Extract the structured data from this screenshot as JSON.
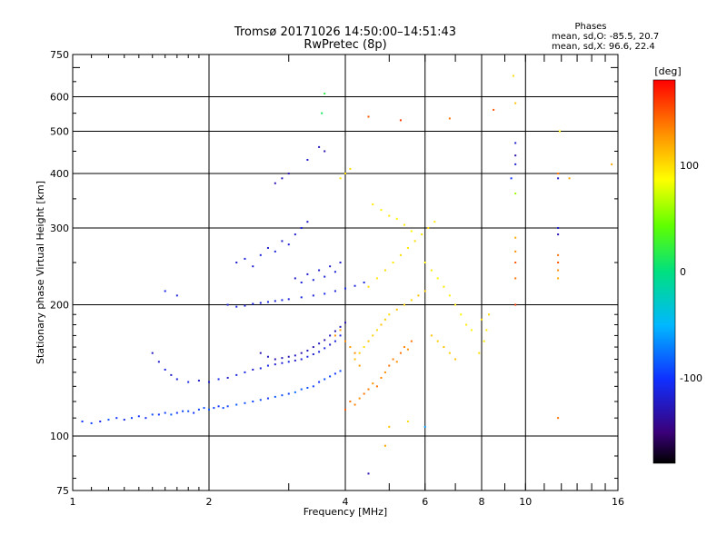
{
  "chart_data": {
    "type": "scatter",
    "title": "Tromsø 20171026 14:50:00–14:51:43",
    "subtitle": "RwPretec (8p)",
    "xlabel": "Frequency [MHz]",
    "ylabel": "Stationary phase Virtual Height [km]",
    "x_scale": "log",
    "y_scale": "log",
    "xlim": [
      1,
      16
    ],
    "ylim": [
      75,
      750
    ],
    "x_ticks": [
      1,
      2,
      4,
      6,
      8,
      10,
      16
    ],
    "x_ticklabels": [
      "1",
      "2",
      "4",
      "6",
      "8",
      "10",
      "16"
    ],
    "x_gridlines": [
      2,
      4,
      6,
      8,
      10
    ],
    "y_ticks": [
      75,
      100,
      200,
      300,
      400,
      500,
      600,
      750
    ],
    "y_ticklabels": [
      "75",
      "100",
      "200",
      "300",
      "400",
      "500",
      "600",
      "750"
    ],
    "y_gridlines": [
      100,
      200,
      300,
      400,
      500,
      600
    ],
    "grid": true,
    "phase_box": {
      "title": "Phases",
      "line1": "mean, sd,O:  -85.5, 20.7",
      "line2": "mean, sd,X:  96.6, 22.4"
    },
    "colorbar": {
      "label": "[deg]",
      "ticks": [
        "100",
        "0",
        "-100"
      ],
      "tick_values": [
        100,
        0,
        -100
      ],
      "range": [
        -180,
        180
      ]
    },
    "series": [
      {
        "points": [
          [
            1.05,
            108,
            -100
          ],
          [
            1.1,
            107,
            -95
          ],
          [
            1.15,
            108,
            -105
          ],
          [
            1.2,
            109,
            -90
          ],
          [
            1.25,
            110,
            -100
          ],
          [
            1.3,
            109,
            -110
          ],
          [
            1.35,
            110,
            -95
          ],
          [
            1.4,
            111,
            -100
          ],
          [
            1.45,
            110,
            -105
          ],
          [
            1.5,
            112,
            -90
          ],
          [
            1.55,
            112,
            -100
          ],
          [
            1.6,
            113,
            -95
          ],
          [
            1.65,
            112,
            -85
          ],
          [
            1.7,
            113,
            -100
          ],
          [
            1.75,
            114,
            -95
          ],
          [
            1.8,
            114,
            -90
          ],
          [
            1.85,
            113,
            -100
          ],
          [
            1.9,
            115,
            -95
          ],
          [
            1.95,
            116,
            -90
          ],
          [
            2.0,
            115,
            -85
          ],
          [
            2.05,
            116,
            -95
          ],
          [
            2.1,
            117,
            -100
          ],
          [
            2.15,
            116,
            -90
          ],
          [
            2.2,
            117,
            -95
          ],
          [
            2.3,
            118,
            -85
          ],
          [
            2.4,
            119,
            -90
          ],
          [
            2.5,
            120,
            -95
          ],
          [
            2.6,
            121,
            -90
          ],
          [
            2.7,
            122,
            -100
          ],
          [
            2.8,
            123,
            -85
          ],
          [
            2.9,
            124,
            -90
          ],
          [
            3.0,
            125,
            -95
          ],
          [
            3.1,
            126,
            -80
          ],
          [
            3.2,
            128,
            -85
          ],
          [
            3.3,
            129,
            -90
          ],
          [
            3.4,
            130,
            -95
          ],
          [
            3.5,
            133,
            -100
          ],
          [
            3.6,
            135,
            -90
          ],
          [
            3.7,
            137,
            -95
          ],
          [
            3.8,
            139,
            -100
          ],
          [
            3.9,
            141,
            -90
          ],
          [
            1.5,
            155,
            -125
          ],
          [
            1.55,
            148,
            -120
          ],
          [
            1.6,
            142,
            -115
          ],
          [
            1.65,
            138,
            -120
          ],
          [
            1.7,
            135,
            -115
          ],
          [
            1.8,
            133,
            -110
          ],
          [
            1.9,
            134,
            -120
          ],
          [
            2.0,
            133,
            -115
          ],
          [
            2.1,
            135,
            -110
          ],
          [
            2.2,
            136,
            -120
          ],
          [
            2.3,
            138,
            -115
          ],
          [
            2.4,
            140,
            -110
          ],
          [
            2.5,
            142,
            -120
          ],
          [
            2.6,
            143,
            -115
          ],
          [
            2.7,
            145,
            -110
          ],
          [
            2.8,
            146,
            -120
          ],
          [
            2.9,
            147,
            -115
          ],
          [
            3.0,
            148,
            -110
          ],
          [
            3.1,
            149,
            -120
          ],
          [
            3.2,
            150,
            -115
          ],
          [
            3.3,
            152,
            -110
          ],
          [
            3.4,
            154,
            -120
          ],
          [
            3.5,
            156,
            -115
          ],
          [
            3.6,
            159,
            -110
          ],
          [
            3.7,
            162,
            -120
          ],
          [
            3.8,
            165,
            -115
          ],
          [
            3.9,
            170,
            -110
          ],
          [
            2.6,
            155,
            -130
          ],
          [
            2.7,
            152,
            -125
          ],
          [
            2.8,
            150,
            -130
          ],
          [
            2.9,
            151,
            -125
          ],
          [
            3.0,
            152,
            -130
          ],
          [
            3.1,
            153,
            -125
          ],
          [
            3.2,
            155,
            -130
          ],
          [
            3.3,
            157,
            -125
          ],
          [
            3.4,
            160,
            -130
          ],
          [
            3.5,
            163,
            -125
          ],
          [
            3.6,
            166,
            -130
          ],
          [
            3.7,
            170,
            -125
          ],
          [
            3.8,
            174,
            -130
          ],
          [
            3.9,
            178,
            -125
          ],
          [
            4.0,
            182,
            -130
          ],
          [
            2.2,
            200,
            -115
          ],
          [
            2.3,
            198,
            -110
          ],
          [
            2.4,
            199,
            -115
          ],
          [
            2.5,
            201,
            -110
          ],
          [
            2.6,
            202,
            -115
          ],
          [
            2.7,
            203,
            -110
          ],
          [
            2.8,
            204,
            -115
          ],
          [
            2.9,
            205,
            -110
          ],
          [
            3.0,
            206,
            -115
          ],
          [
            3.2,
            208,
            -110
          ],
          [
            3.4,
            210,
            -115
          ],
          [
            3.6,
            212,
            -110
          ],
          [
            3.8,
            215,
            -115
          ],
          [
            4.0,
            218,
            -110
          ],
          [
            4.2,
            221,
            -115
          ],
          [
            4.4,
            225,
            -110
          ],
          [
            2.3,
            250,
            -120
          ],
          [
            2.4,
            255,
            -115
          ],
          [
            2.5,
            245,
            -120
          ],
          [
            2.6,
            260,
            -115
          ],
          [
            2.7,
            270,
            -120
          ],
          [
            2.8,
            265,
            -115
          ],
          [
            2.9,
            280,
            -120
          ],
          [
            3.0,
            275,
            -115
          ],
          [
            3.1,
            290,
            -120
          ],
          [
            3.2,
            300,
            -115
          ],
          [
            3.3,
            310,
            -120
          ],
          [
            2.8,
            380,
            -130
          ],
          [
            2.9,
            390,
            -125
          ],
          [
            3.0,
            400,
            -130
          ],
          [
            3.3,
            430,
            -120
          ],
          [
            3.5,
            460,
            -125
          ],
          [
            3.6,
            450,
            -130
          ],
          [
            3.1,
            230,
            -120
          ],
          [
            3.2,
            225,
            -115
          ],
          [
            3.3,
            235,
            -120
          ],
          [
            3.4,
            228,
            -115
          ],
          [
            3.5,
            240,
            -120
          ],
          [
            3.6,
            232,
            -115
          ],
          [
            3.7,
            245,
            -120
          ],
          [
            3.8,
            238,
            -115
          ],
          [
            3.9,
            250,
            -120
          ],
          [
            1.6,
            215,
            -110
          ],
          [
            1.7,
            210,
            -115
          ],
          [
            4.0,
            115,
            150
          ],
          [
            4.1,
            120,
            140
          ],
          [
            4.2,
            118,
            135
          ],
          [
            4.3,
            122,
            130
          ],
          [
            4.4,
            125,
            140
          ],
          [
            4.5,
            128,
            135
          ],
          [
            4.6,
            132,
            130
          ],
          [
            4.7,
            130,
            140
          ],
          [
            4.8,
            136,
            135
          ],
          [
            4.9,
            140,
            130
          ],
          [
            5.0,
            145,
            140
          ],
          [
            5.1,
            150,
            135
          ],
          [
            5.2,
            148,
            130
          ],
          [
            5.3,
            155,
            140
          ],
          [
            5.4,
            160,
            135
          ],
          [
            5.5,
            158,
            130
          ],
          [
            5.6,
            165,
            140
          ],
          [
            4.2,
            150,
            110
          ],
          [
            4.3,
            155,
            105
          ],
          [
            4.4,
            160,
            100
          ],
          [
            4.5,
            165,
            110
          ],
          [
            4.6,
            170,
            105
          ],
          [
            4.7,
            175,
            100
          ],
          [
            4.8,
            180,
            110
          ],
          [
            4.9,
            185,
            105
          ],
          [
            5.0,
            190,
            100
          ],
          [
            5.2,
            195,
            110
          ],
          [
            5.4,
            200,
            105
          ],
          [
            5.6,
            205,
            100
          ],
          [
            5.8,
            210,
            110
          ],
          [
            6.0,
            215,
            105
          ],
          [
            4.5,
            220,
            100
          ],
          [
            4.7,
            230,
            95
          ],
          [
            4.9,
            240,
            100
          ],
          [
            5.1,
            250,
            95
          ],
          [
            5.3,
            260,
            100
          ],
          [
            5.5,
            270,
            95
          ],
          [
            5.7,
            280,
            100
          ],
          [
            5.9,
            290,
            95
          ],
          [
            6.1,
            300,
            100
          ],
          [
            6.3,
            310,
            95
          ],
          [
            4.6,
            340,
            95
          ],
          [
            4.8,
            330,
            90
          ],
          [
            5.0,
            320,
            95
          ],
          [
            5.2,
            315,
            90
          ],
          [
            5.4,
            305,
            95
          ],
          [
            5.6,
            295,
            90
          ],
          [
            6.0,
            250,
            90
          ],
          [
            6.2,
            240,
            95
          ],
          [
            6.4,
            230,
            90
          ],
          [
            6.6,
            220,
            95
          ],
          [
            6.8,
            210,
            90
          ],
          [
            7.0,
            200,
            95
          ],
          [
            7.2,
            190,
            90
          ],
          [
            7.4,
            180,
            95
          ],
          [
            7.6,
            175,
            90
          ],
          [
            6.2,
            170,
            110
          ],
          [
            6.4,
            165,
            105
          ],
          [
            6.6,
            160,
            110
          ],
          [
            6.8,
            155,
            105
          ],
          [
            7.0,
            150,
            110
          ],
          [
            4.0,
            400,
            100
          ],
          [
            3.9,
            390,
            95
          ],
          [
            4.1,
            410,
            100
          ],
          [
            3.6,
            610,
            20
          ],
          [
            3.55,
            550,
            10
          ],
          [
            4.5,
            540,
            150
          ],
          [
            5.3,
            530,
            160
          ],
          [
            6.8,
            535,
            140
          ],
          [
            8.5,
            560,
            150
          ],
          [
            9.5,
            580,
            110
          ],
          [
            9.5,
            470,
            -120
          ],
          [
            9.5,
            440,
            -130
          ],
          [
            9.5,
            420,
            -120
          ],
          [
            9.3,
            390,
            -100
          ],
          [
            9.5,
            360,
            60
          ],
          [
            9.5,
            285,
            120
          ],
          [
            9.5,
            265,
            130
          ],
          [
            9.5,
            250,
            150
          ],
          [
            9.5,
            230,
            140
          ],
          [
            9.5,
            200,
            160
          ],
          [
            9.4,
            670,
            100
          ],
          [
            11.9,
            500,
            90
          ],
          [
            11.8,
            400,
            140
          ],
          [
            12.5,
            390,
            120
          ],
          [
            11.8,
            390,
            -120
          ],
          [
            11.8,
            300,
            -120
          ],
          [
            11.8,
            290,
            -130
          ],
          [
            11.8,
            260,
            140
          ],
          [
            11.8,
            250,
            150
          ],
          [
            11.8,
            240,
            130
          ],
          [
            11.8,
            230,
            120
          ],
          [
            11.8,
            110,
            140
          ],
          [
            15.5,
            420,
            120
          ],
          [
            8.3,
            190,
            100
          ],
          [
            8.2,
            175,
            95
          ],
          [
            8.0,
            185,
            100
          ],
          [
            8.1,
            165,
            95
          ],
          [
            7.9,
            155,
            100
          ],
          [
            4.9,
            95,
            120
          ],
          [
            4.5,
            82,
            -130
          ],
          [
            5.0,
            105,
            110
          ],
          [
            5.5,
            108,
            100
          ],
          [
            6.0,
            105,
            -60
          ],
          [
            3.8,
            170,
            130
          ],
          [
            3.9,
            175,
            125
          ],
          [
            4.0,
            165,
            130
          ],
          [
            4.1,
            160,
            125
          ],
          [
            4.2,
            155,
            130
          ],
          [
            4.3,
            145,
            125
          ]
        ]
      }
    ]
  }
}
